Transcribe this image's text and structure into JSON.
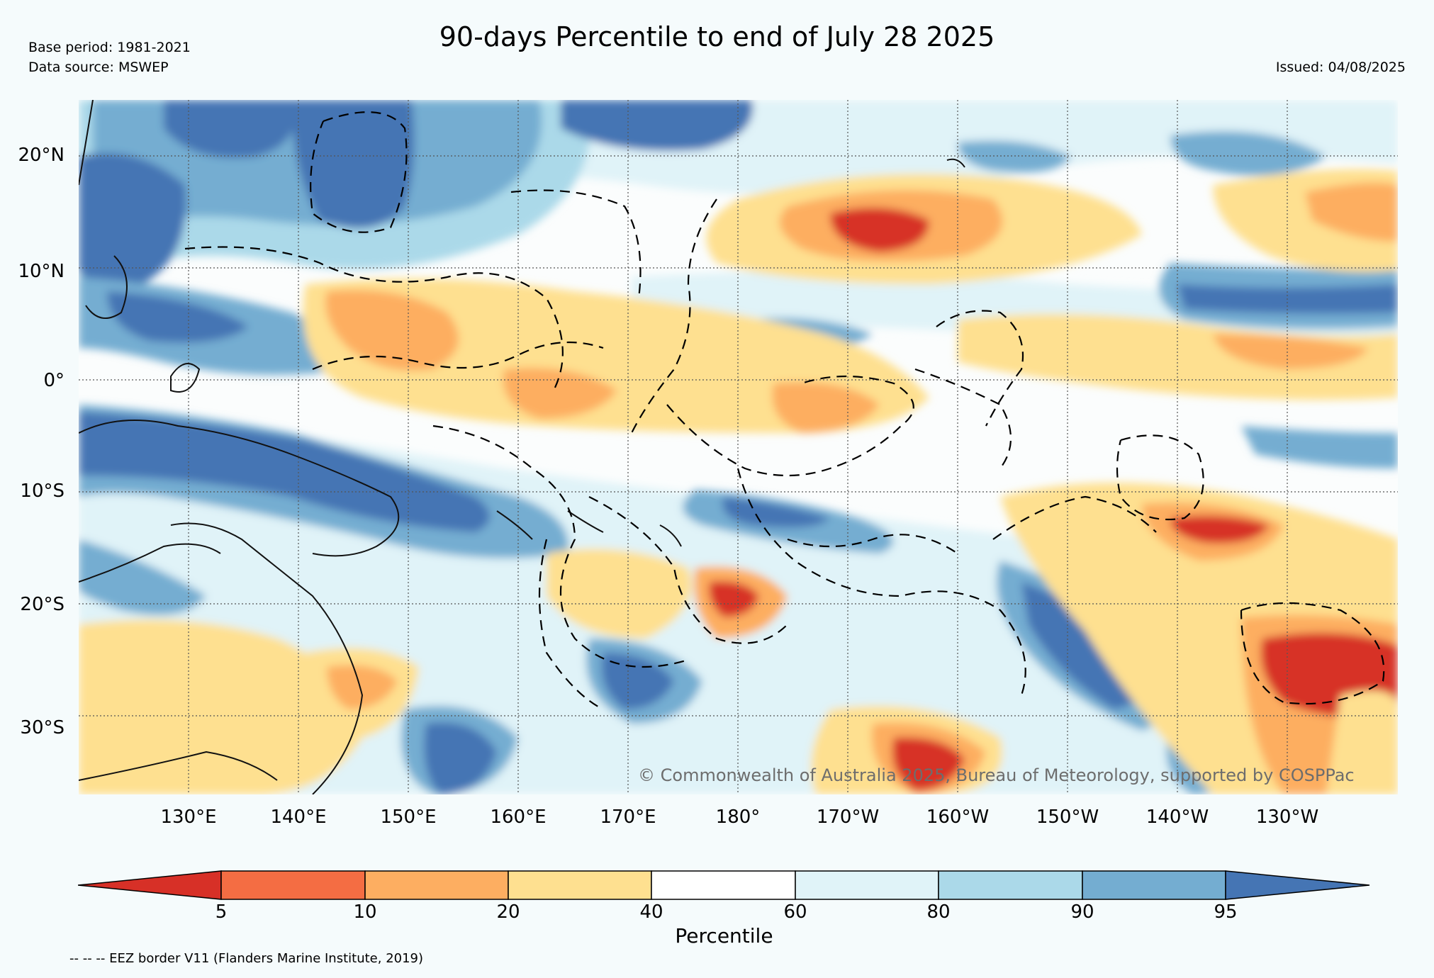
{
  "header": {
    "title": "90-days Percentile to end of July 28 2025",
    "base_period": "Base period: 1981-2021",
    "data_source": "Data source: MSWEP",
    "issued": "Issued: 04/08/2025"
  },
  "map": {
    "lat_labels": [
      "20°N",
      "10°N",
      "0°",
      "10°S",
      "20°S",
      "30°S"
    ],
    "lon_labels": [
      "130°E",
      "140°E",
      "150°E",
      "160°E",
      "170°E",
      "180°",
      "170°W",
      "160°W",
      "150°W",
      "140°W",
      "130°W"
    ],
    "lon_range": [
      120,
      240
    ],
    "lat_range": [
      -37,
      25
    ],
    "copyright": "© Commonwealth of Australia 2025, Bureau of Meteorology, supported by COSPPac"
  },
  "colorbar": {
    "ticks": [
      "5",
      "10",
      "20",
      "40",
      "60",
      "80",
      "90",
      "95"
    ],
    "label": "Percentile",
    "colors": [
      "#d73027",
      "#f46d43",
      "#fdae61",
      "#fee090",
      "#ffffff",
      "#e0f3f8",
      "#abd9e9",
      "#74add1",
      "#4575b4"
    ]
  },
  "footer": {
    "eez_note": "-- -- -- EEZ border V11 (Flanders Marine Institute, 2019)"
  }
}
